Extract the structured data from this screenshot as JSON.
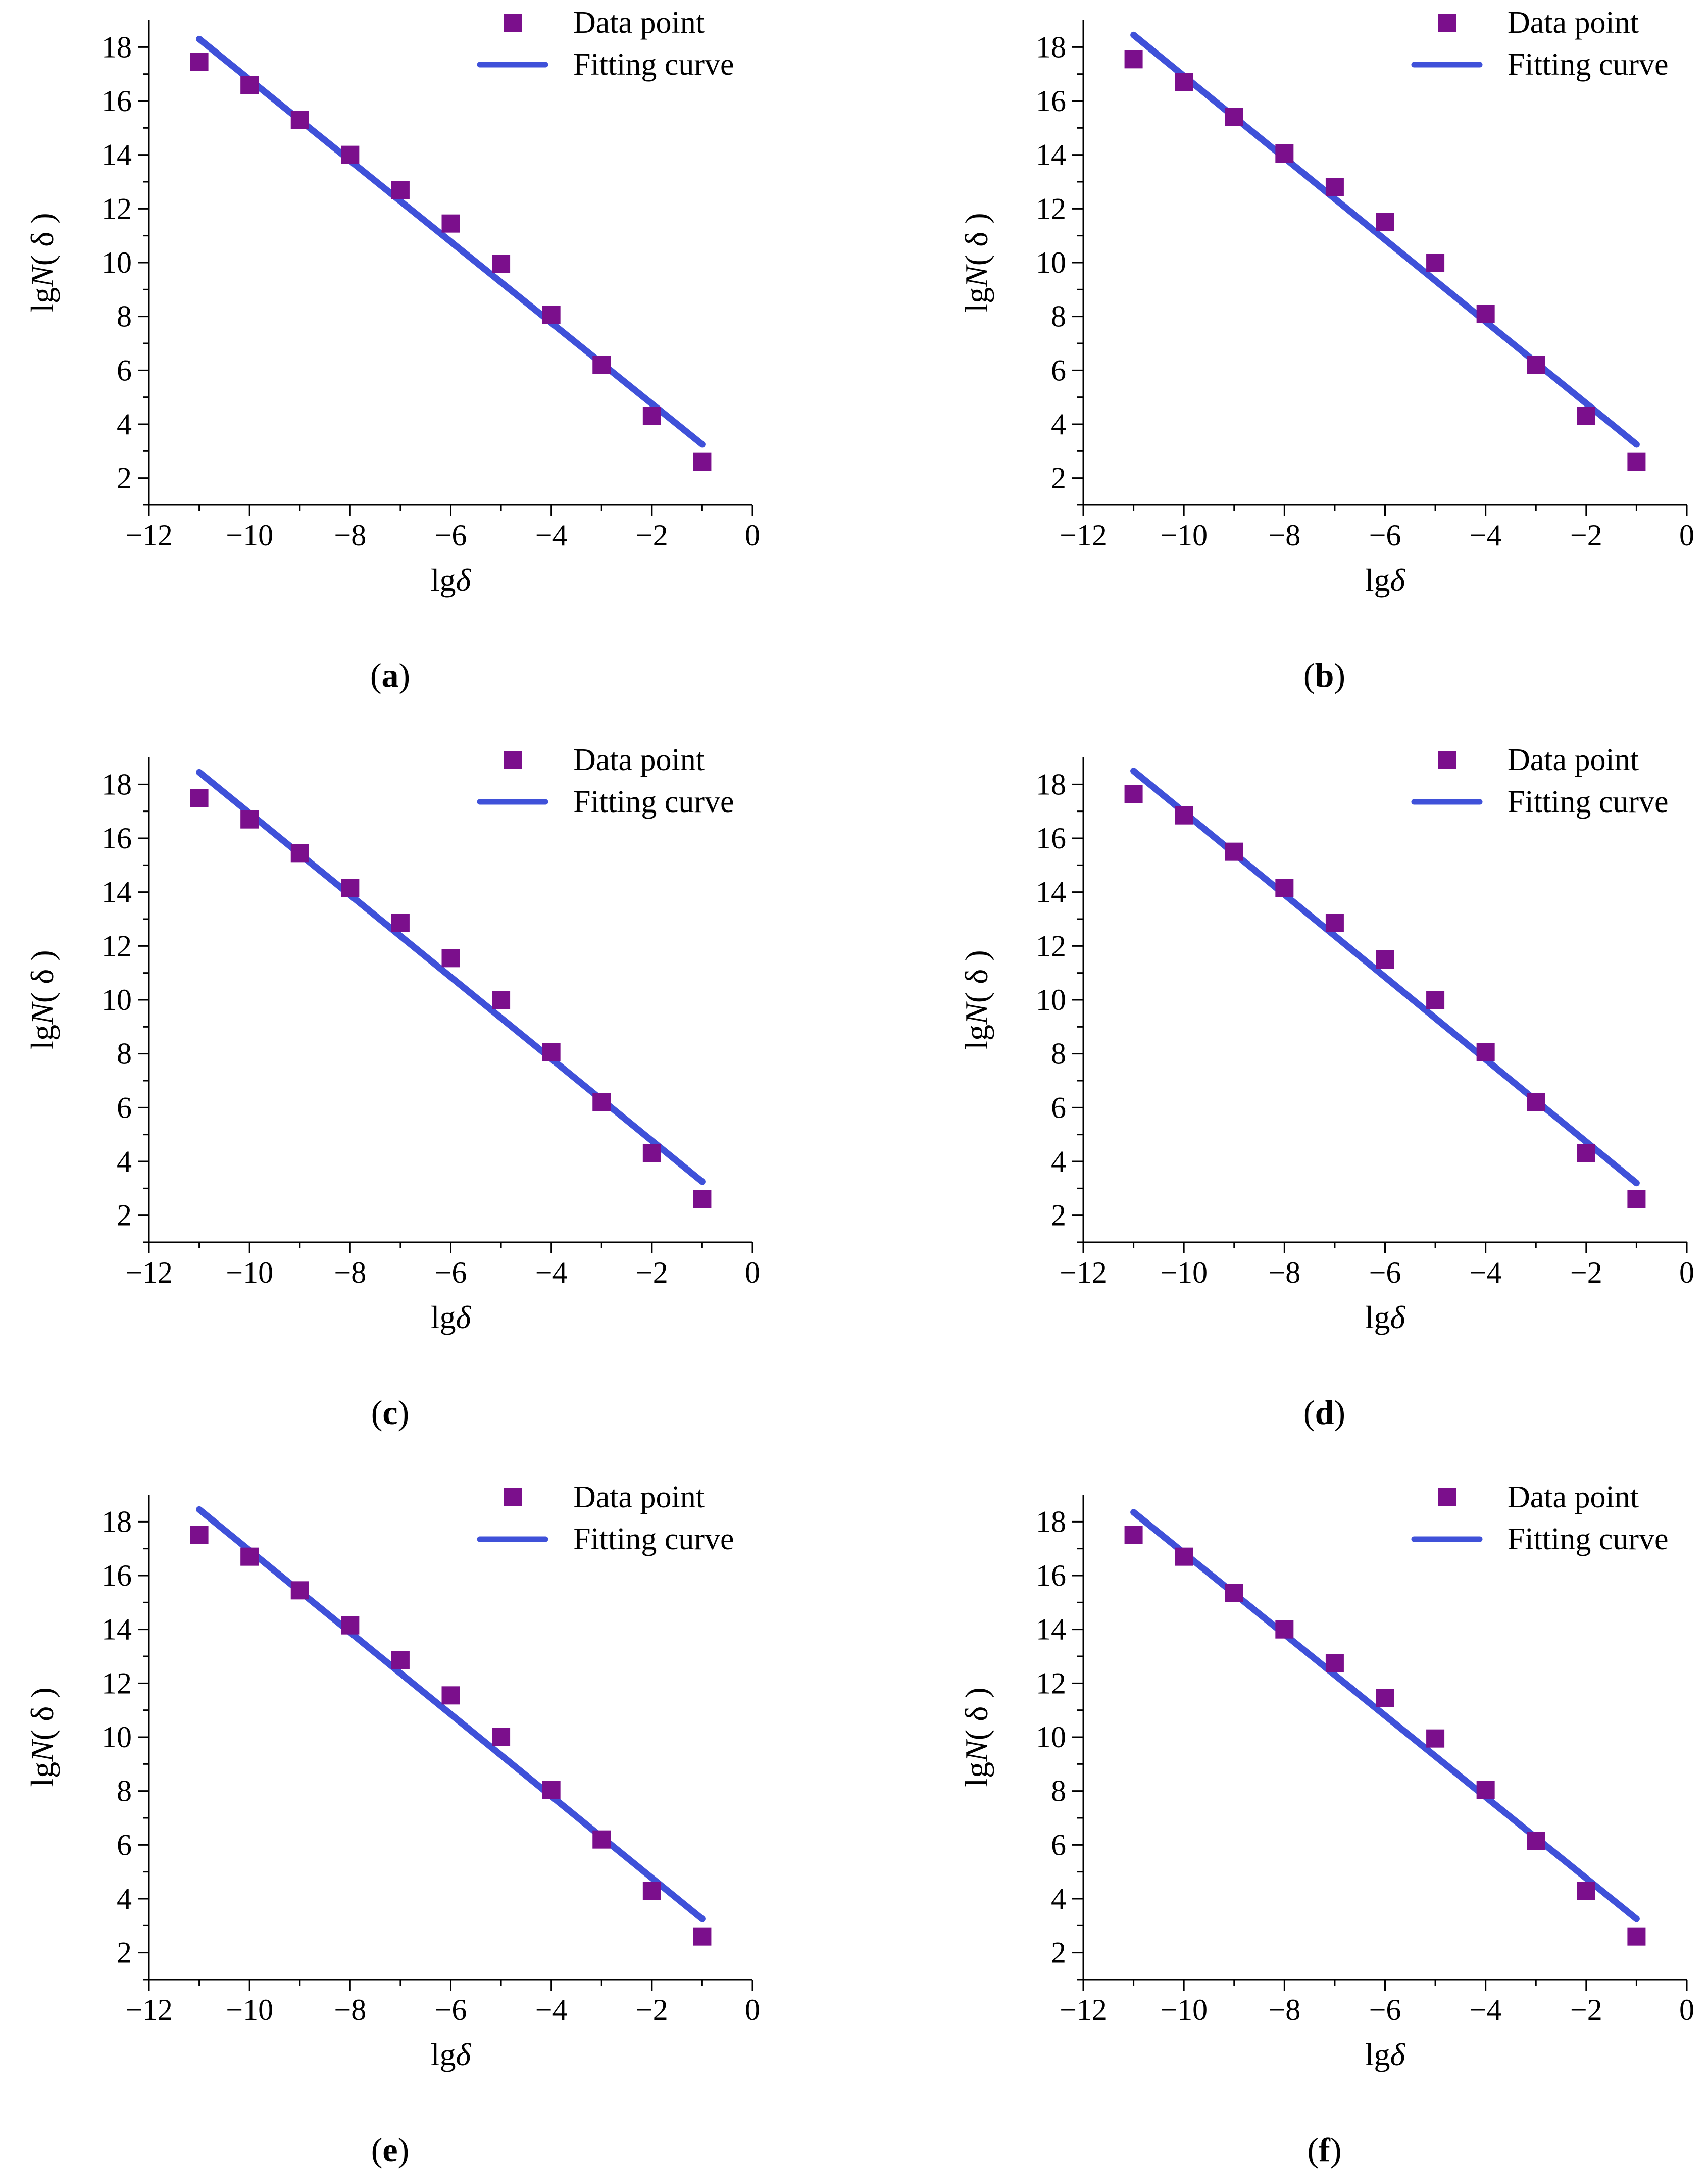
{
  "chart_data": [
    {
      "type": "scatter",
      "panel_label": "a",
      "xlabel": {
        "prefix": "lg",
        "var": "δ"
      },
      "ylabel": {
        "prefix": "lg",
        "var": "N",
        "arg": "( δ )"
      },
      "xlim": [
        -12,
        0
      ],
      "ylim": [
        1,
        19
      ],
      "xticks": [
        -12,
        -10,
        -8,
        -6,
        -4,
        -2,
        0
      ],
      "xtick_labels": [
        "−12",
        "−10",
        "−8",
        "−6",
        "−4",
        "−2",
        "0"
      ],
      "yticks": [
        2,
        4,
        6,
        8,
        10,
        12,
        14,
        16,
        18
      ],
      "ytick_labels": [
        "2",
        "4",
        "6",
        "8",
        "10",
        "12",
        "14",
        "16",
        "18"
      ],
      "legend": {
        "placement": "top-right",
        "items": [
          "Data point",
          "Fitting curve"
        ]
      },
      "series": [
        {
          "name": "Data point",
          "kind": "scatter",
          "x": [
            -11,
            -10,
            -9,
            -8,
            -7,
            -6,
            -5,
            -4,
            -3,
            -2,
            -1
          ],
          "y": [
            17.45,
            16.6,
            15.3,
            14.0,
            12.7,
            11.45,
            9.95,
            8.05,
            6.2,
            4.3,
            2.6
          ]
        },
        {
          "name": "Fitting curve",
          "kind": "line",
          "x": [
            -11,
            -1
          ],
          "y": [
            18.3,
            3.25
          ]
        }
      ]
    },
    {
      "type": "scatter",
      "panel_label": "b",
      "xlabel": {
        "prefix": "lg",
        "var": "δ"
      },
      "ylabel": {
        "prefix": "lg",
        "var": "N",
        "arg": "( δ )"
      },
      "xlim": [
        -12,
        0
      ],
      "ylim": [
        1,
        19
      ],
      "xticks": [
        -12,
        -10,
        -8,
        -6,
        -4,
        -2,
        0
      ],
      "xtick_labels": [
        "−12",
        "−10",
        "−8",
        "−6",
        "−4",
        "−2",
        "0"
      ],
      "yticks": [
        2,
        4,
        6,
        8,
        10,
        12,
        14,
        16,
        18
      ],
      "ytick_labels": [
        "2",
        "4",
        "6",
        "8",
        "10",
        "12",
        "14",
        "16",
        "18"
      ],
      "legend": {
        "placement": "top-right",
        "items": [
          "Data point",
          "Fitting curve"
        ]
      },
      "series": [
        {
          "name": "Data point",
          "kind": "scatter",
          "x": [
            -11,
            -10,
            -9,
            -8,
            -7,
            -6,
            -5,
            -4,
            -3,
            -2,
            -1
          ],
          "y": [
            17.55,
            16.7,
            15.4,
            14.05,
            12.8,
            11.5,
            10.0,
            8.1,
            6.2,
            4.3,
            2.6
          ]
        },
        {
          "name": "Fitting curve",
          "kind": "line",
          "x": [
            -11,
            -1
          ],
          "y": [
            18.45,
            3.25
          ]
        }
      ]
    },
    {
      "type": "scatter",
      "panel_label": "c",
      "xlabel": {
        "prefix": "lg",
        "var": "δ"
      },
      "ylabel": {
        "prefix": "lg",
        "var": "N",
        "arg": "( δ )"
      },
      "xlim": [
        -12,
        0
      ],
      "ylim": [
        1,
        19
      ],
      "xticks": [
        -12,
        -10,
        -8,
        -6,
        -4,
        -2,
        0
      ],
      "xtick_labels": [
        "−12",
        "−10",
        "−8",
        "−6",
        "−4",
        "−2",
        "0"
      ],
      "yticks": [
        2,
        4,
        6,
        8,
        10,
        12,
        14,
        16,
        18
      ],
      "ytick_labels": [
        "2",
        "4",
        "6",
        "8",
        "10",
        "12",
        "14",
        "16",
        "18"
      ],
      "legend": {
        "placement": "top-right",
        "items": [
          "Data point",
          "Fitting curve"
        ]
      },
      "series": [
        {
          "name": "Data point",
          "kind": "scatter",
          "x": [
            -11,
            -10,
            -9,
            -8,
            -7,
            -6,
            -5,
            -4,
            -3,
            -2,
            -1
          ],
          "y": [
            17.5,
            16.7,
            15.45,
            14.15,
            12.85,
            11.55,
            10.0,
            8.05,
            6.2,
            4.3,
            2.6
          ]
        },
        {
          "name": "Fitting curve",
          "kind": "line",
          "x": [
            -11,
            -1
          ],
          "y": [
            18.45,
            3.25
          ]
        }
      ]
    },
    {
      "type": "scatter",
      "panel_label": "d",
      "xlabel": {
        "prefix": "lg",
        "var": "δ"
      },
      "ylabel": {
        "prefix": "lg",
        "var": "N",
        "arg": "( δ )"
      },
      "xlim": [
        -12,
        0
      ],
      "ylim": [
        1,
        19
      ],
      "xticks": [
        -12,
        -10,
        -8,
        -6,
        -4,
        -2,
        0
      ],
      "xtick_labels": [
        "−12",
        "−10",
        "−8",
        "−6",
        "−4",
        "−2",
        "0"
      ],
      "yticks": [
        2,
        4,
        6,
        8,
        10,
        12,
        14,
        16,
        18
      ],
      "ytick_labels": [
        "2",
        "4",
        "6",
        "8",
        "10",
        "12",
        "14",
        "16",
        "18"
      ],
      "legend": {
        "placement": "top-right",
        "items": [
          "Data point",
          "Fitting curve"
        ]
      },
      "series": [
        {
          "name": "Data point",
          "kind": "scatter",
          "x": [
            -11,
            -10,
            -9,
            -8,
            -7,
            -6,
            -5,
            -4,
            -3,
            -2,
            -1
          ],
          "y": [
            17.65,
            16.85,
            15.5,
            14.15,
            12.85,
            11.5,
            10.0,
            8.05,
            6.2,
            4.3,
            2.6
          ]
        },
        {
          "name": "Fitting curve",
          "kind": "line",
          "x": [
            -11,
            -1
          ],
          "y": [
            18.5,
            3.2
          ]
        }
      ]
    },
    {
      "type": "scatter",
      "panel_label": "e",
      "xlabel": {
        "prefix": "lg",
        "var": "δ"
      },
      "ylabel": {
        "prefix": "lg",
        "var": "N",
        "arg": "( δ )"
      },
      "xlim": [
        -12,
        0
      ],
      "ylim": [
        1,
        19
      ],
      "xticks": [
        -12,
        -10,
        -8,
        -6,
        -4,
        -2,
        0
      ],
      "xtick_labels": [
        "−12",
        "−10",
        "−8",
        "−6",
        "−4",
        "−2",
        "0"
      ],
      "yticks": [
        2,
        4,
        6,
        8,
        10,
        12,
        14,
        16,
        18
      ],
      "ytick_labels": [
        "2",
        "4",
        "6",
        "8",
        "10",
        "12",
        "14",
        "16",
        "18"
      ],
      "legend": {
        "placement": "top-right",
        "items": [
          "Data point",
          "Fitting curve"
        ]
      },
      "series": [
        {
          "name": "Data point",
          "kind": "scatter",
          "x": [
            -11,
            -10,
            -9,
            -8,
            -7,
            -6,
            -5,
            -4,
            -3,
            -2,
            -1
          ],
          "y": [
            17.5,
            16.7,
            15.45,
            14.15,
            12.85,
            11.55,
            10.0,
            8.05,
            6.2,
            4.3,
            2.6
          ]
        },
        {
          "name": "Fitting curve",
          "kind": "line",
          "x": [
            -11,
            -1
          ],
          "y": [
            18.45,
            3.25
          ]
        }
      ]
    },
    {
      "type": "scatter",
      "panel_label": "f",
      "xlabel": {
        "prefix": "lg",
        "var": "δ"
      },
      "ylabel": {
        "prefix": "lg",
        "var": "N",
        "arg": "( δ )"
      },
      "xlim": [
        -12,
        0
      ],
      "ylim": [
        1,
        19
      ],
      "xticks": [
        -12,
        -10,
        -8,
        -6,
        -4,
        -2,
        0
      ],
      "xtick_labels": [
        "−12",
        "−10",
        "−8",
        "−6",
        "−4",
        "−2",
        "0"
      ],
      "yticks": [
        2,
        4,
        6,
        8,
        10,
        12,
        14,
        16,
        18
      ],
      "ytick_labels": [
        "2",
        "4",
        "6",
        "8",
        "10",
        "12",
        "14",
        "16",
        "18"
      ],
      "legend": {
        "placement": "top-right",
        "items": [
          "Data point",
          "Fitting curve"
        ]
      },
      "series": [
        {
          "name": "Data point",
          "kind": "scatter",
          "x": [
            -11,
            -10,
            -9,
            -8,
            -7,
            -6,
            -5,
            -4,
            -3,
            -2,
            -1
          ],
          "y": [
            17.5,
            16.7,
            15.35,
            14.0,
            12.75,
            11.45,
            9.95,
            8.05,
            6.15,
            4.3,
            2.6
          ]
        },
        {
          "name": "Fitting curve",
          "kind": "line",
          "x": [
            -11,
            -1
          ],
          "y": [
            18.35,
            3.25
          ]
        }
      ]
    }
  ],
  "colors": {
    "data_point": "#7B0F8C",
    "fitting_curve": "#3F51D9",
    "axis": "#000000"
  }
}
